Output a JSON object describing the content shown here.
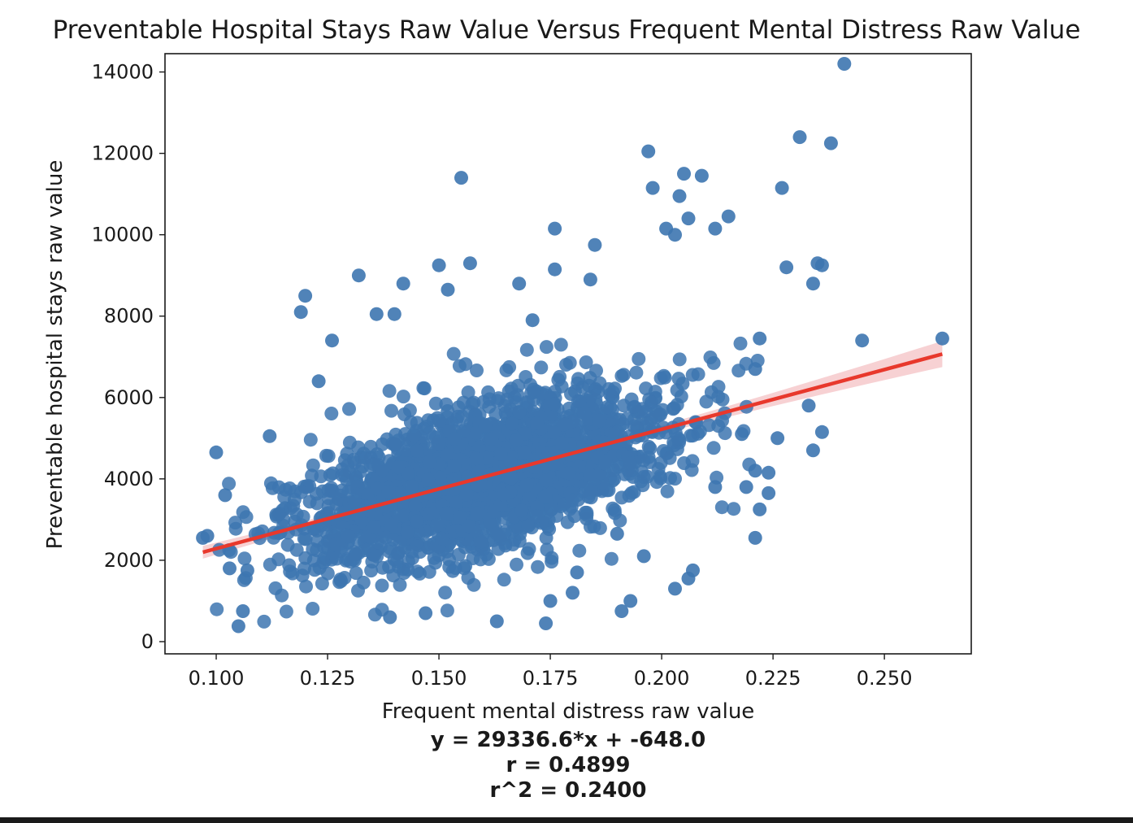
{
  "chart_data": {
    "type": "scatter",
    "title": "Preventable Hospital Stays Raw Value Versus Frequent Mental Distress Raw Value",
    "xlabel": "Frequent mental distress raw value",
    "ylabel": "Preventable hospital stays raw value",
    "xlim": [
      0.0885,
      0.2695
    ],
    "ylim": [
      -300,
      14450
    ],
    "x_ticks": [
      0.1,
      0.125,
      0.15,
      0.175,
      0.2,
      0.225,
      0.25
    ],
    "x_tick_labels": [
      "0.100",
      "0.125",
      "0.150",
      "0.175",
      "0.200",
      "0.225",
      "0.250"
    ],
    "y_ticks": [
      0,
      2000,
      4000,
      6000,
      8000,
      10000,
      12000,
      14000
    ],
    "y_tick_labels": [
      "0",
      "2000",
      "4000",
      "6000",
      "8000",
      "10000",
      "12000",
      "14000"
    ],
    "grid": false,
    "colors": {
      "points": "#3d76b0",
      "regression_line": "#e8382c",
      "confidence_band": "#f4c2c4"
    },
    "regression": {
      "slope": 29336.6,
      "intercept": -648.0,
      "x_range": [
        0.097,
        0.263
      ],
      "annotation_lines": [
        "y = 29336.6*x + -648.0",
        "r = 0.4899",
        "r^2 = 0.2400"
      ]
    },
    "outlier_points": [
      {
        "x": 0.1,
        "y": 4650
      },
      {
        "x": 0.097,
        "y": 2550
      },
      {
        "x": 0.098,
        "y": 2600
      },
      {
        "x": 0.102,
        "y": 3600
      },
      {
        "x": 0.103,
        "y": 1800
      },
      {
        "x": 0.105,
        "y": 380
      },
      {
        "x": 0.106,
        "y": 750
      },
      {
        "x": 0.107,
        "y": 1750
      },
      {
        "x": 0.119,
        "y": 8100
      },
      {
        "x": 0.12,
        "y": 8500
      },
      {
        "x": 0.155,
        "y": 11400
      },
      {
        "x": 0.157,
        "y": 9300
      },
      {
        "x": 0.176,
        "y": 10150
      },
      {
        "x": 0.176,
        "y": 9150
      },
      {
        "x": 0.185,
        "y": 9750
      },
      {
        "x": 0.184,
        "y": 8900
      },
      {
        "x": 0.197,
        "y": 12050
      },
      {
        "x": 0.198,
        "y": 11150
      },
      {
        "x": 0.201,
        "y": 10150
      },
      {
        "x": 0.203,
        "y": 10000
      },
      {
        "x": 0.205,
        "y": 11500
      },
      {
        "x": 0.209,
        "y": 11450
      },
      {
        "x": 0.204,
        "y": 10950
      },
      {
        "x": 0.206,
        "y": 10400
      },
      {
        "x": 0.212,
        "y": 10150
      },
      {
        "x": 0.215,
        "y": 10450
      },
      {
        "x": 0.221,
        "y": 2550
      },
      {
        "x": 0.227,
        "y": 11150
      },
      {
        "x": 0.228,
        "y": 9200
      },
      {
        "x": 0.231,
        "y": 12400
      },
      {
        "x": 0.234,
        "y": 8800
      },
      {
        "x": 0.235,
        "y": 9300
      },
      {
        "x": 0.236,
        "y": 9250
      },
      {
        "x": 0.238,
        "y": 12250
      },
      {
        "x": 0.241,
        "y": 14200
      },
      {
        "x": 0.245,
        "y": 7400
      },
      {
        "x": 0.263,
        "y": 7450
      },
      {
        "x": 0.236,
        "y": 5150
      },
      {
        "x": 0.234,
        "y": 4700
      },
      {
        "x": 0.233,
        "y": 5800
      },
      {
        "x": 0.132,
        "y": 9000
      },
      {
        "x": 0.14,
        "y": 8050
      },
      {
        "x": 0.136,
        "y": 8050
      },
      {
        "x": 0.142,
        "y": 8800
      },
      {
        "x": 0.15,
        "y": 9250
      },
      {
        "x": 0.152,
        "y": 8650
      },
      {
        "x": 0.168,
        "y": 8800
      },
      {
        "x": 0.171,
        "y": 7900
      },
      {
        "x": 0.175,
        "y": 1000
      },
      {
        "x": 0.174,
        "y": 450
      },
      {
        "x": 0.163,
        "y": 500
      },
      {
        "x": 0.191,
        "y": 750
      },
      {
        "x": 0.193,
        "y": 1000
      },
      {
        "x": 0.203,
        "y": 1300
      },
      {
        "x": 0.206,
        "y": 1550
      },
      {
        "x": 0.207,
        "y": 1750
      },
      {
        "x": 0.212,
        "y": 3800
      },
      {
        "x": 0.219,
        "y": 3800
      },
      {
        "x": 0.222,
        "y": 3250
      },
      {
        "x": 0.224,
        "y": 3650
      },
      {
        "x": 0.221,
        "y": 4200
      },
      {
        "x": 0.224,
        "y": 4150
      },
      {
        "x": 0.196,
        "y": 2100
      },
      {
        "x": 0.19,
        "y": 2650
      },
      {
        "x": 0.18,
        "y": 1200
      },
      {
        "x": 0.181,
        "y": 1700
      },
      {
        "x": 0.139,
        "y": 600
      },
      {
        "x": 0.147,
        "y": 700
      },
      {
        "x": 0.112,
        "y": 5050
      },
      {
        "x": 0.123,
        "y": 6400
      },
      {
        "x": 0.126,
        "y": 7400
      },
      {
        "x": 0.222,
        "y": 7450
      },
      {
        "x": 0.221,
        "y": 6700
      },
      {
        "x": 0.226,
        "y": 5000
      },
      {
        "x": 0.218,
        "y": 5100
      }
    ],
    "cloud": {
      "description_of_generation": "dense point cloud around regression line",
      "x_range": [
        0.1,
        0.223
      ],
      "center_x": 0.16,
      "spread_x": 0.021,
      "residual_sd": 900,
      "n": 2400
    }
  }
}
